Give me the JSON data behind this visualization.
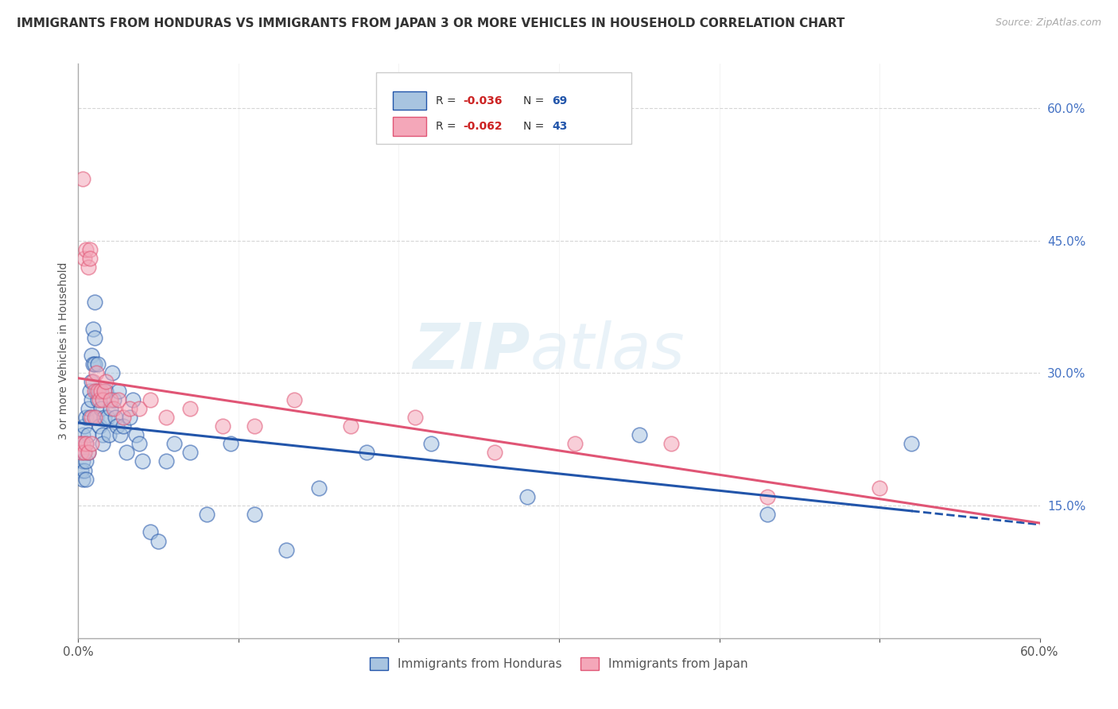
{
  "title": "IMMIGRANTS FROM HONDURAS VS IMMIGRANTS FROM JAPAN 3 OR MORE VEHICLES IN HOUSEHOLD CORRELATION CHART",
  "source": "Source: ZipAtlas.com",
  "ylabel": "3 or more Vehicles in Household",
  "xlim": [
    0,
    0.6
  ],
  "ylim": [
    0,
    0.65
  ],
  "legend_r1": "-0.036",
  "legend_n1": "69",
  "legend_r2": "-0.062",
  "legend_n2": "43",
  "legend_label1": "Immigrants from Honduras",
  "legend_label2": "Immigrants from Japan",
  "color_honduras": "#a8c4e0",
  "color_japan": "#f4a7b9",
  "line_color_honduras": "#2255aa",
  "line_color_japan": "#e05575",
  "watermark_zip": "ZIP",
  "watermark_atlas": "atlas",
  "background_color": "#ffffff",
  "grid_color": "#cccccc",
  "honduras_x": [
    0.001,
    0.002,
    0.002,
    0.003,
    0.003,
    0.003,
    0.004,
    0.004,
    0.004,
    0.005,
    0.005,
    0.005,
    0.005,
    0.006,
    0.006,
    0.006,
    0.007,
    0.007,
    0.008,
    0.008,
    0.008,
    0.009,
    0.009,
    0.01,
    0.01,
    0.01,
    0.011,
    0.011,
    0.012,
    0.012,
    0.013,
    0.013,
    0.014,
    0.015,
    0.015,
    0.016,
    0.017,
    0.018,
    0.019,
    0.02,
    0.021,
    0.022,
    0.023,
    0.024,
    0.025,
    0.026,
    0.028,
    0.03,
    0.032,
    0.034,
    0.036,
    0.038,
    0.04,
    0.045,
    0.05,
    0.055,
    0.06,
    0.07,
    0.08,
    0.095,
    0.11,
    0.13,
    0.15,
    0.18,
    0.22,
    0.28,
    0.35,
    0.43,
    0.52
  ],
  "honduras_y": [
    0.22,
    0.21,
    0.19,
    0.23,
    0.2,
    0.18,
    0.24,
    0.21,
    0.19,
    0.25,
    0.22,
    0.2,
    0.18,
    0.26,
    0.23,
    0.21,
    0.28,
    0.25,
    0.32,
    0.29,
    0.27,
    0.35,
    0.31,
    0.38,
    0.34,
    0.31,
    0.28,
    0.25,
    0.31,
    0.27,
    0.28,
    0.24,
    0.26,
    0.23,
    0.22,
    0.25,
    0.28,
    0.25,
    0.23,
    0.26,
    0.3,
    0.27,
    0.25,
    0.24,
    0.28,
    0.23,
    0.24,
    0.21,
    0.25,
    0.27,
    0.23,
    0.22,
    0.2,
    0.12,
    0.11,
    0.2,
    0.22,
    0.21,
    0.14,
    0.22,
    0.14,
    0.1,
    0.17,
    0.21,
    0.22,
    0.16,
    0.23,
    0.14,
    0.22
  ],
  "japan_x": [
    0.001,
    0.002,
    0.003,
    0.003,
    0.004,
    0.004,
    0.005,
    0.005,
    0.006,
    0.006,
    0.007,
    0.007,
    0.008,
    0.008,
    0.009,
    0.01,
    0.01,
    0.011,
    0.012,
    0.013,
    0.014,
    0.015,
    0.016,
    0.017,
    0.02,
    0.022,
    0.025,
    0.028,
    0.032,
    0.038,
    0.045,
    0.055,
    0.07,
    0.09,
    0.11,
    0.135,
    0.17,
    0.21,
    0.26,
    0.31,
    0.37,
    0.43,
    0.5
  ],
  "japan_y": [
    0.22,
    0.21,
    0.52,
    0.22,
    0.43,
    0.21,
    0.44,
    0.22,
    0.42,
    0.21,
    0.44,
    0.43,
    0.22,
    0.25,
    0.29,
    0.28,
    0.25,
    0.3,
    0.28,
    0.27,
    0.28,
    0.27,
    0.28,
    0.29,
    0.27,
    0.26,
    0.27,
    0.25,
    0.26,
    0.26,
    0.27,
    0.25,
    0.26,
    0.24,
    0.24,
    0.27,
    0.24,
    0.25,
    0.21,
    0.22,
    0.22,
    0.16,
    0.17
  ]
}
